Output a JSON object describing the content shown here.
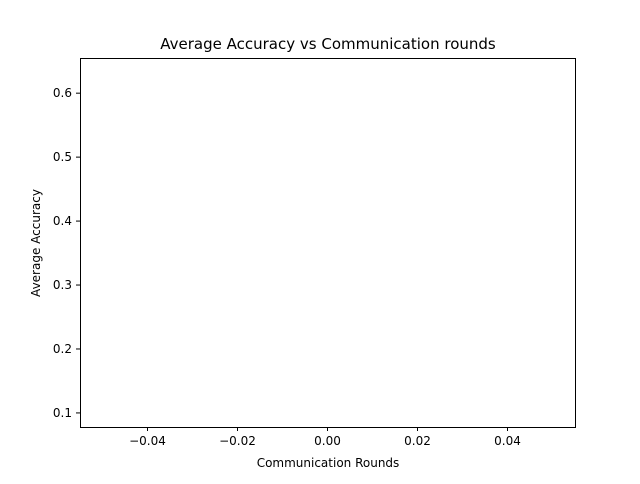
{
  "chart_data": {
    "type": "line",
    "title": "Average Accuracy vs Communication rounds",
    "xlabel": "Communication Rounds",
    "ylabel": "Average Accuracy",
    "xlim": [
      -0.055,
      0.055
    ],
    "ylim": [
      0.078,
      0.655
    ],
    "x_ticks": [
      -0.04,
      -0.02,
      0.0,
      0.02,
      0.04
    ],
    "x_tick_labels": [
      "−0.04",
      "−0.02",
      "0.00",
      "0.02",
      "0.04"
    ],
    "y_ticks": [
      0.1,
      0.2,
      0.3,
      0.4,
      0.5,
      0.6
    ],
    "y_tick_labels": [
      "0.1",
      "0.2",
      "0.3",
      "0.4",
      "0.5",
      "0.6"
    ],
    "grid": false,
    "series": []
  }
}
